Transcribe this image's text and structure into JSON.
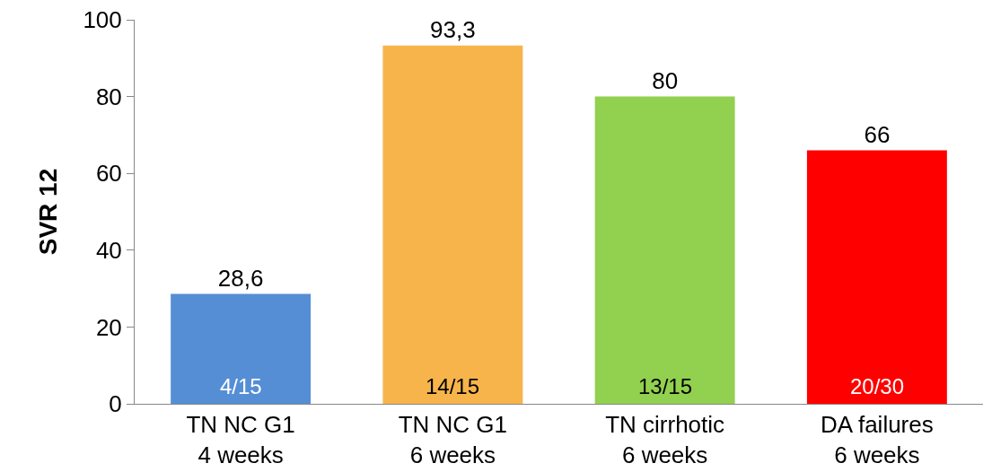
{
  "chart_data": {
    "type": "bar",
    "ylabel": "SVR 12",
    "categories": [
      "TN NC G1\n4 weeks",
      "TN NC G1\n6 weeks",
      "TN cirrhotic\n6 weeks",
      "DA failures\n6 weeks"
    ],
    "values": [
      28.6,
      93.3,
      80,
      66
    ],
    "colors": [
      "#558ed5",
      "#f6b44b",
      "#92d050",
      "#ff0000"
    ],
    "value_labels": [
      "28,6",
      "93,3",
      "80",
      "66"
    ],
    "annotations": [
      "4/15",
      "14/15",
      "13/15",
      "20/30"
    ],
    "ylim": [
      0,
      100
    ],
    "yticks": [
      0,
      20,
      40,
      60,
      80,
      100
    ],
    "grid": false
  }
}
